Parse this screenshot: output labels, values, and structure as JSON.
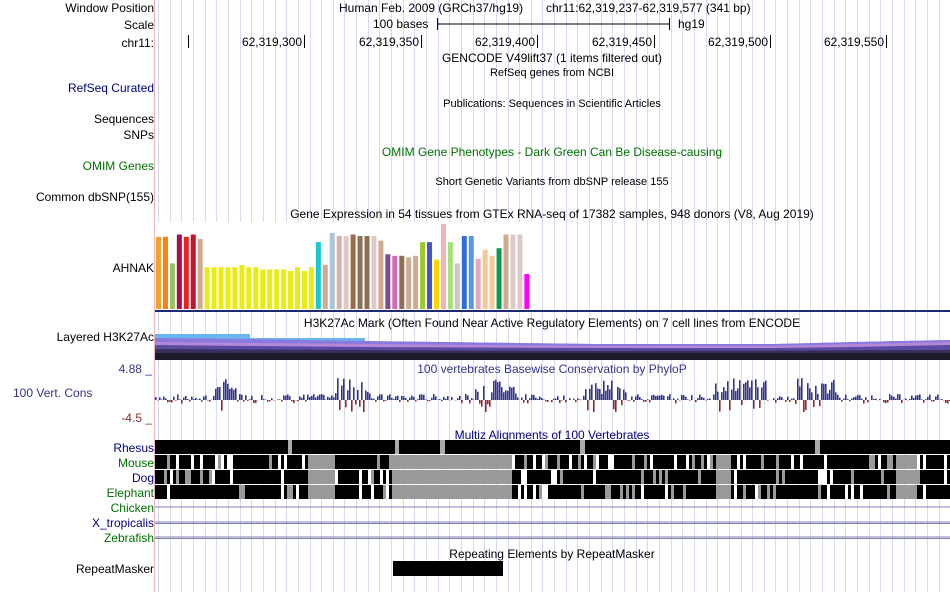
{
  "header": {
    "window_position_label": "Window Position",
    "assembly": "Human Feb. 2009 (GRCh37/hg19)",
    "position": "chr11:62,319,237-62,319,577 (341 bp)",
    "scale_label": "Scale",
    "scale_bases": "100 bases",
    "scale_db": "hg19",
    "chrom_label": "chr11:",
    "ruler_ticks": [
      "62,319,300",
      "62,319,350",
      "62,319,400",
      "62,319,450",
      "62,319,500",
      "62,319,550"
    ]
  },
  "tracks": {
    "gencode_title": "GENCODE V49lift37 (1 items filtered out)",
    "refseq_label": "RefSeq Curated",
    "refseq_title": "RefSeq genes from NCBI",
    "pubs_title": "Publications: Sequences in Scientific Articles",
    "sequences_label": "Sequences",
    "snps_label": "SNPs",
    "omim_label": "OMIM Genes",
    "omim_title": "OMIM Gene Phenotypes - Dark Green Can Be Disease-causing",
    "dbsnp_title": "Short Genetic Variants from dbSNP release 155",
    "dbsnp_label": "Common dbSNP(155)",
    "gtex_title": "Gene Expression in 54 tissues from GTEx RNA-seq of 17382 samples, 948 donors (V8, Aug 2019)",
    "gtex_label": "AHNAK",
    "h3k27ac_label": "Layered H3K27Ac",
    "h3k27ac_title": "H3K27Ac Mark (Often Found Near Active Regulatory Elements) on 7 cell lines from ENCODE",
    "cons_title": "100 vertebrates Basewise Conservation by PhyloP",
    "cons_label": "100 Vert. Cons",
    "cons_max": "4.88 _",
    "cons_min": "-4.5 _",
    "multiz_title": "Multiz Alignments of 100 Vertebrates",
    "species": [
      "Rhesus",
      "Mouse",
      "Dog",
      "Elephant",
      "Chicken",
      "X_tropicalis",
      "Zebrafish"
    ],
    "rmsk_title": "Repeating Elements by RepeatMasker",
    "rmsk_label": "RepeatMasker"
  },
  "colors": {
    "gtex_bars": [
      "#f5a030",
      "#ff7f0e",
      "#99c262",
      "#a50f4a",
      "#ef2020",
      "#c0162a",
      "#d1a990",
      "#ebeb11",
      "#ebeb11",
      "#ebeb11",
      "#ebeb11",
      "#ebeb11",
      "#ebeb11",
      "#ebeb11",
      "#ebeb11",
      "#ebeb11",
      "#ebeb11",
      "#ebeb11",
      "#ebeb11",
      "#ebeb11",
      "#ebeb11",
      "#ebeb11",
      "#ebeb11",
      "#18c8d0",
      "#d1a990",
      "#a8c6d8",
      "#d9b1a8",
      "#e0c8c8",
      "#a06a48",
      "#8b7055",
      "#8b7055",
      "#e0c8c8",
      "#d1a990",
      "#7e4a90",
      "#d46ab2",
      "#8b7055",
      "#d1a990",
      "#d1a990",
      "#9ac92c",
      "#4a52c8",
      "#ffd700",
      "#f0b4b4",
      "#a8e080",
      "#c8c8c8",
      "#2e6ce0",
      "#5898e0",
      "#e4a8c0",
      "#f8c898",
      "#f8c898",
      "#0a9c4a",
      "#d1a990",
      "#e0c8c8",
      "#e0c8c8",
      "#ff00ff"
    ],
    "omim_green": "#007000",
    "label_blue": "#000080",
    "cons_blue": "#33348a",
    "cons_red": "#8a2a2a"
  },
  "chart_data": {
    "type": "bar",
    "title": "Gene Expression in 54 tissues from GTEx RNA-seq of 17382 samples, 948 donors (V8, Aug 2019)",
    "values": [
      0.95,
      0.95,
      0.6,
      0.98,
      0.95,
      0.98,
      0.92,
      0.55,
      0.55,
      0.55,
      0.55,
      0.55,
      0.58,
      0.55,
      0.55,
      0.52,
      0.52,
      0.52,
      0.52,
      0.5,
      0.55,
      0.5,
      0.55,
      0.88,
      0.58,
      1.0,
      0.96,
      0.96,
      0.98,
      0.96,
      0.96,
      0.96,
      0.9,
      0.72,
      0.7,
      0.7,
      0.68,
      0.7,
      0.88,
      0.88,
      0.65,
      1.12,
      0.88,
      0.6,
      0.96,
      0.96,
      0.66,
      0.78,
      0.7,
      0.8,
      0.98,
      0.98,
      0.98,
      0.46
    ]
  }
}
